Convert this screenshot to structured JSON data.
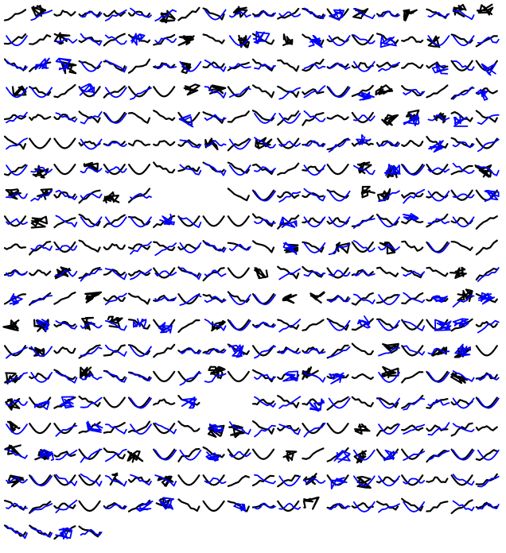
{
  "grid": {
    "columns": 20,
    "rows": 21,
    "glyph_count": 404
  },
  "colors": {
    "background": "#ffffff",
    "ink_dark": "#000000",
    "ink_blue": "#0000ff"
  },
  "row_empty_spans": [
    {
      "row": 7,
      "from": 6,
      "to": 8
    },
    {
      "row": 15,
      "from": 8,
      "to": 9
    }
  ],
  "trailing_row": {
    "row": 20,
    "count": 4
  }
}
